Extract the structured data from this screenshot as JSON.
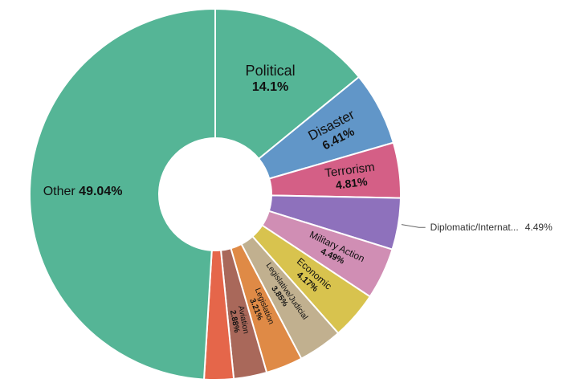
{
  "chart_data": {
    "type": "pie",
    "variant": "donut",
    "title": "",
    "series": [
      {
        "name": "Political",
        "value": 14.1,
        "label": "14.1%",
        "color": "#55b596"
      },
      {
        "name": "Disaster",
        "value": 6.41,
        "label": "6.41%",
        "color": "#6196c8"
      },
      {
        "name": "Terrorism",
        "value": 4.81,
        "label": "4.81%",
        "color": "#d45f86"
      },
      {
        "name": "Diplomatic/Internat...",
        "value": 4.49,
        "label": "4.49%",
        "color": "#8e71bc"
      },
      {
        "name": "Military Action",
        "value": 4.49,
        "label": "4.49%",
        "color": "#d08eb4"
      },
      {
        "name": "Economic",
        "value": 4.17,
        "label": "4.17%",
        "color": "#d8c34e"
      },
      {
        "name": "Legislative/Judicial",
        "value": 3.85,
        "label": "3.85%",
        "color": "#c1b08f"
      },
      {
        "name": "Legislation",
        "value": 3.21,
        "label": "3.21%",
        "color": "#df8a46"
      },
      {
        "name": "Aviation",
        "value": 2.88,
        "label": "2.88%",
        "color": "#a9685a"
      },
      {
        "name": "",
        "value": 2.56,
        "label": "",
        "color": "#e5664a"
      },
      {
        "name": "Other",
        "value": 49.04,
        "label": "49.04%",
        "color": "#55b596"
      }
    ]
  }
}
